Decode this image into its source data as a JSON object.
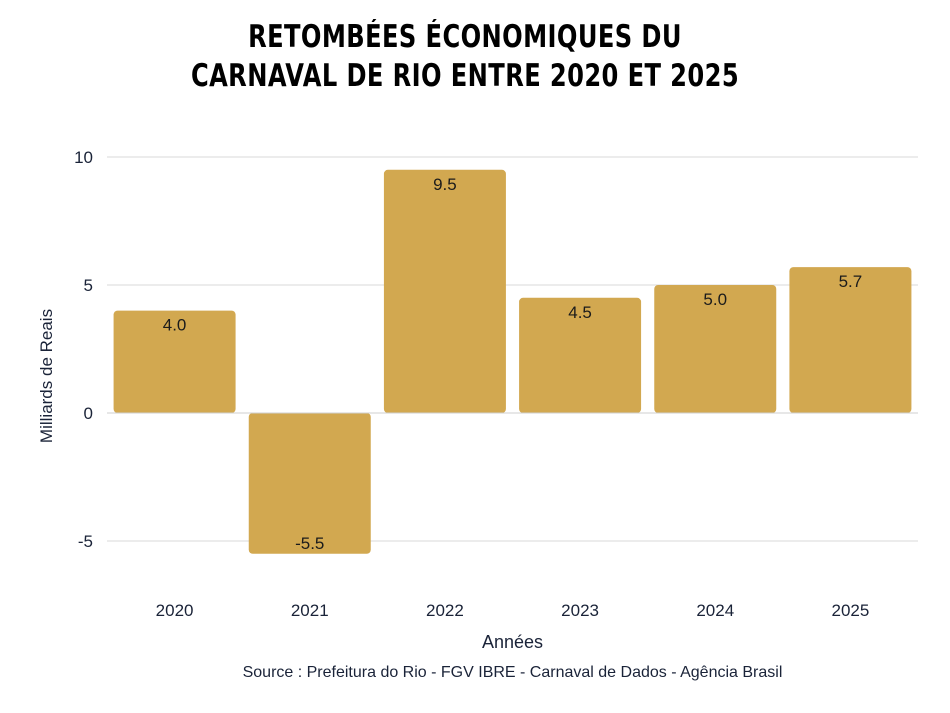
{
  "chart_data": {
    "type": "bar",
    "title_lines": [
      "RETOMBÉES ÉCONOMIQUES DU",
      "CARNAVAL DE RIO ENTRE 2020 ET 2025"
    ],
    "categories": [
      "2020",
      "2021",
      "2022",
      "2023",
      "2024",
      "2025"
    ],
    "values": [
      4.0,
      -5.5,
      9.5,
      4.5,
      5.0,
      5.7
    ],
    "data_labels": [
      "4.0",
      "-5.5",
      "9.5",
      "4.5",
      "5.0",
      "5.7"
    ],
    "xlabel": "Années",
    "ylabel": "Milliards de Reais",
    "ylim": [
      -6.5,
      10
    ],
    "yticks": [
      10,
      5,
      0,
      -5
    ],
    "ytick_labels": [
      "10",
      "5",
      "0",
      "-5"
    ],
    "grid": true,
    "bar_color": "#d2a850",
    "source": "Source : Prefeitura do Rio - FGV IBRE - Carnaval de Dados - Agência Brasil"
  }
}
